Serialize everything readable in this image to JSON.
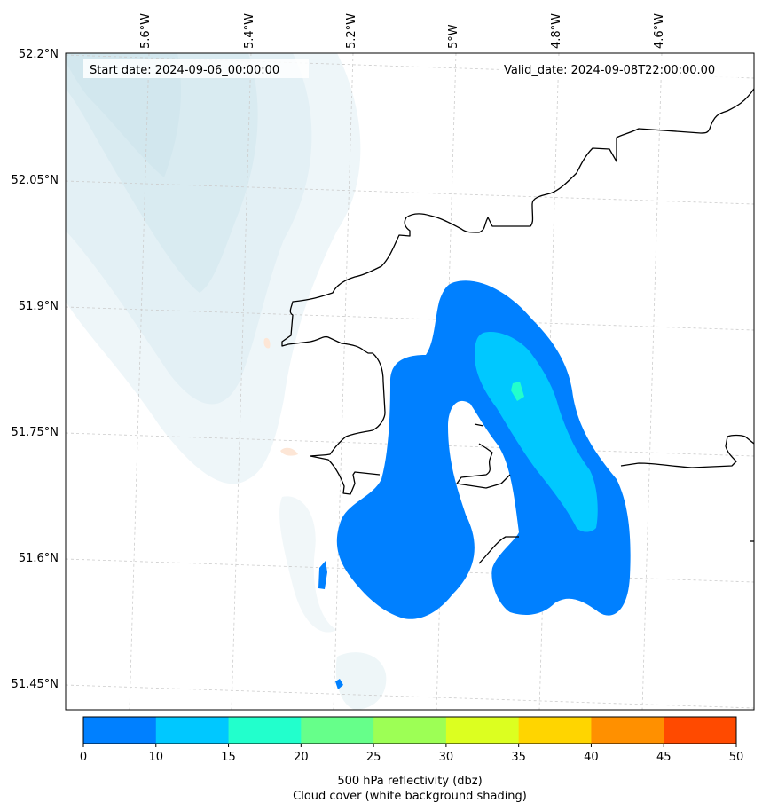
{
  "header": {
    "start_date": "Start date: 2024-09-06_00:00:00",
    "valid_date": "Valid_date: 2024-09-08T22:00:00.00"
  },
  "map": {
    "projection": "conic (rotated lat/lon graticule)",
    "lon_labels": [
      "5.6°W",
      "5.4°W",
      "5.2°W",
      "5°W",
      "4.8°W",
      "4.6°W"
    ],
    "lat_labels": [
      "52.2°N",
      "52.05°N",
      "51.9°N",
      "51.75°N",
      "51.6°N",
      "51.45°N"
    ],
    "gridlines": "dashed, light gray",
    "coastline_color": "#000000",
    "cloud_shading_color": "#d6eaf0",
    "reflectivity_features": [
      {
        "level": "0-10 dbz",
        "color": "#0080ff",
        "shape": "large inverted-U band"
      },
      {
        "level": "10-15 dbz",
        "color": "#00c8ff",
        "shape": "elongated core on eastern arm"
      },
      {
        "level": "15-20 dbz",
        "color": "#22ffcc",
        "shape": "small cell inside core"
      },
      {
        "level": "0-10 dbz",
        "color": "#0080ff",
        "shape": "small isolated cells near west coast"
      }
    ]
  },
  "colorbar": {
    "ticks": [
      "0",
      "10",
      "15",
      "20",
      "25",
      "30",
      "35",
      "40",
      "45",
      "50"
    ],
    "colors": [
      "#0080ff",
      "#00c8ff",
      "#22ffcc",
      "#66ff8a",
      "#9dff55",
      "#dcff20",
      "#ffd500",
      "#ff9000",
      "#ff4a00"
    ],
    "label_line1": "500 hPa reflectivity (dbz)",
    "label_line2": "Cloud cover (white background shading)"
  }
}
